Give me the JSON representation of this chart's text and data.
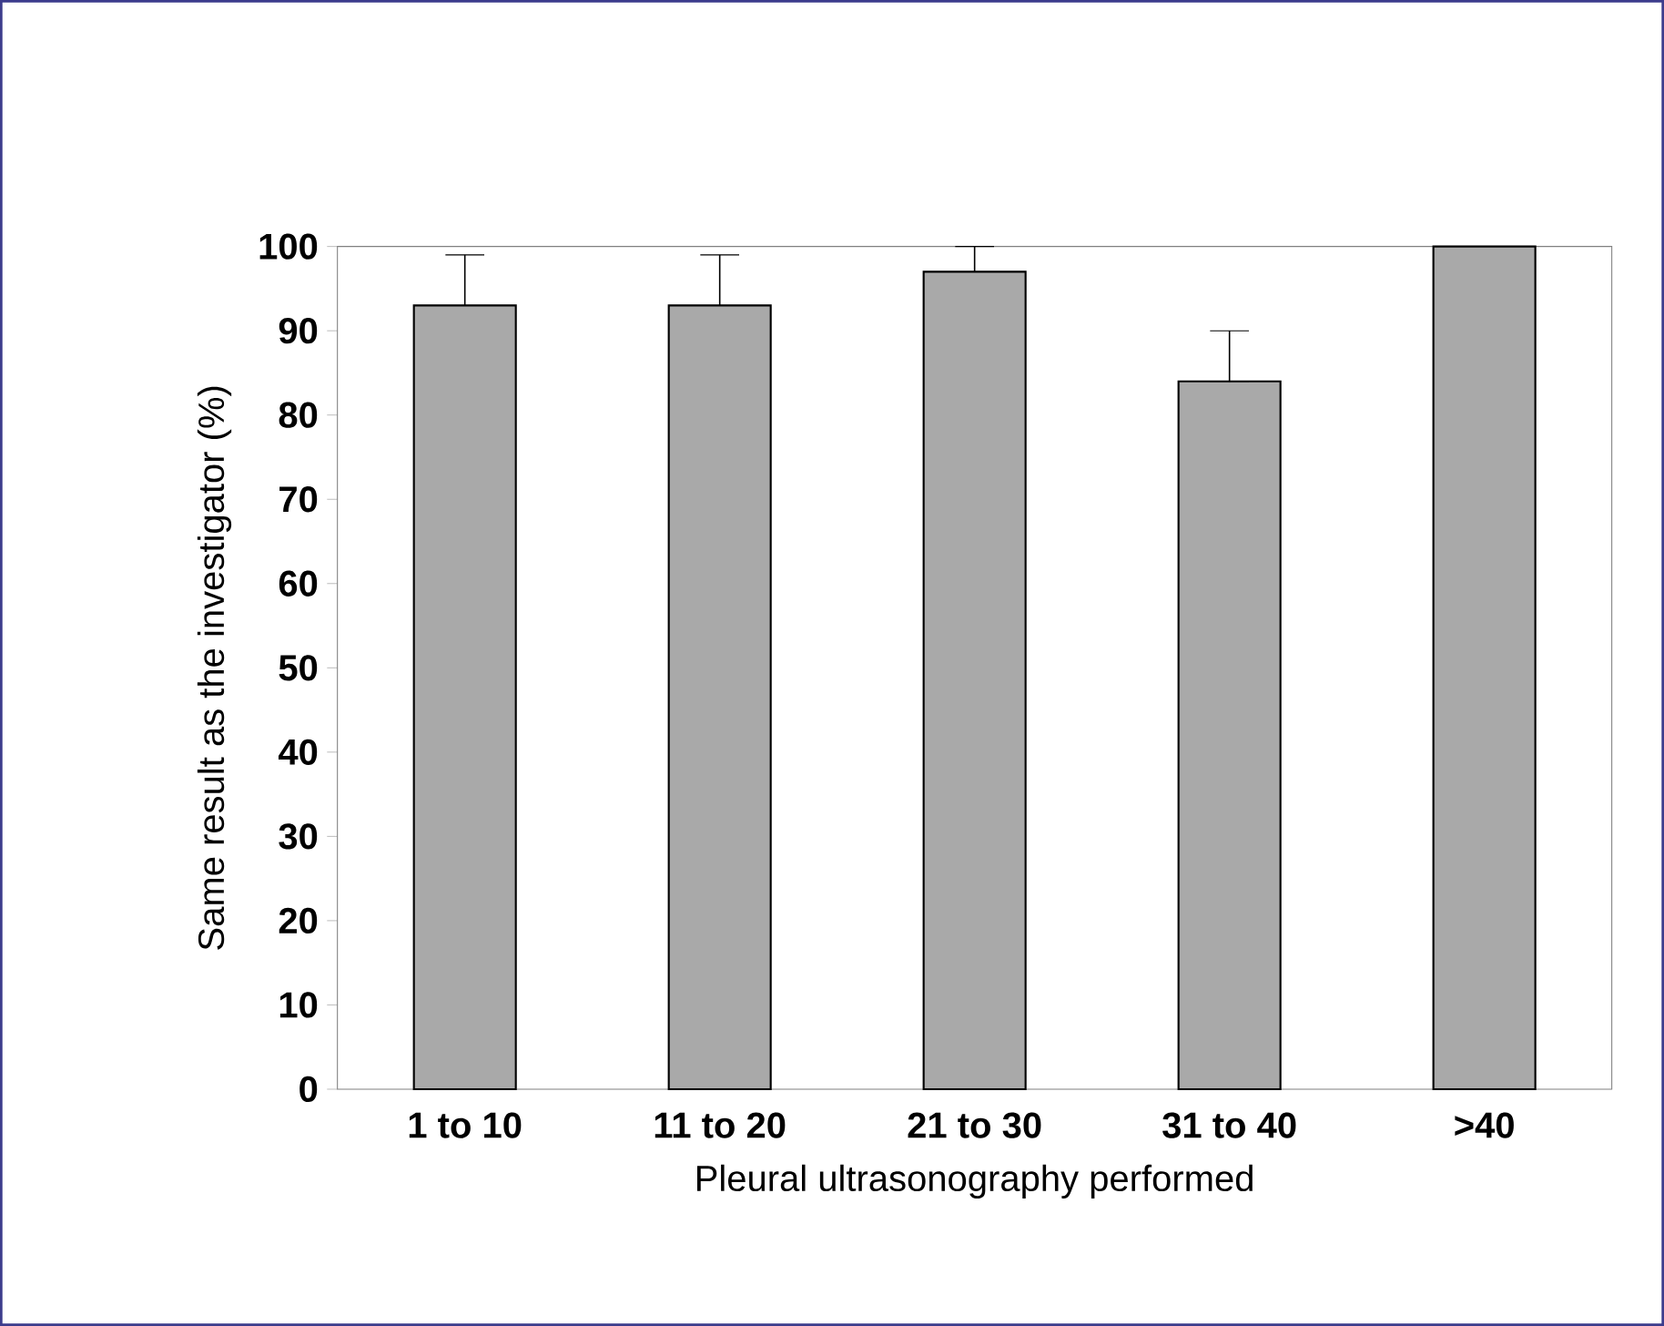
{
  "chart_data": {
    "type": "bar",
    "xlabel": "Pleural ultrasonography performed",
    "ylabel": "Same result as the investigator (%)",
    "categories": [
      "1 to 10",
      "11 to 20",
      "21 to 30",
      "31 to 40",
      ">40"
    ],
    "values": [
      93,
      93,
      97,
      84,
      100
    ],
    "errors": [
      [
        93,
        99
      ],
      [
        93,
        99
      ],
      [
        97,
        100
      ],
      [
        84,
        90
      ],
      null
    ],
    "color": "#a9a9a9",
    "ylim": [
      0,
      100
    ],
    "yticks": [
      0,
      10,
      20,
      30,
      40,
      50,
      60,
      70,
      80,
      90,
      100
    ],
    "grid": false
  }
}
